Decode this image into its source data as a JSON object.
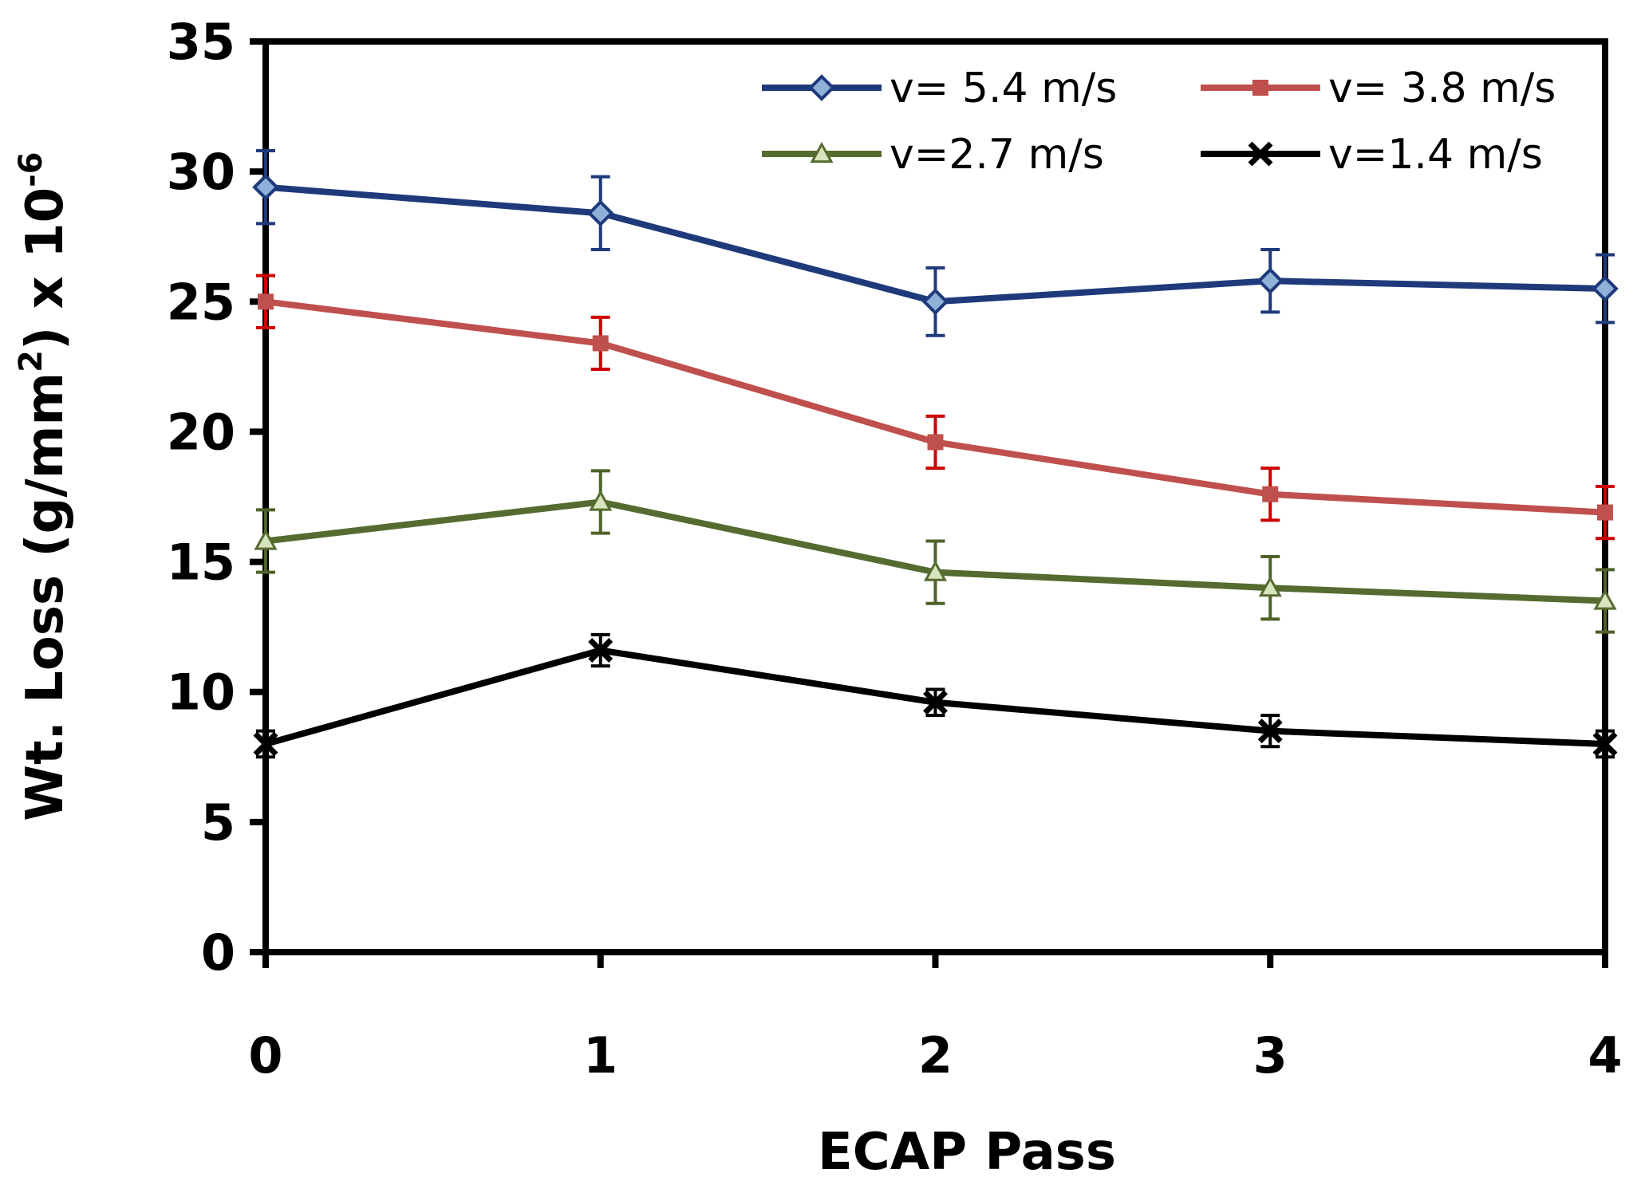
{
  "chart_data": {
    "type": "line",
    "title": "",
    "xlabel": "ECAP Pass",
    "ylabel": {
      "text": "Wt. Loss (g/mm",
      "sup1": "2",
      "mid": ") x 10",
      "sup2": "-6"
    },
    "x": [
      0,
      1,
      2,
      3,
      4
    ],
    "xlim": [
      0,
      4
    ],
    "ylim": [
      0,
      35
    ],
    "y_ticks": [
      0,
      5,
      10,
      15,
      20,
      25,
      30,
      35
    ],
    "x_tick_labels": [
      "0",
      "1",
      "2",
      "3",
      "4"
    ],
    "y_tick_labels": [
      "0",
      "5",
      "10",
      "15",
      "20",
      "25",
      "30",
      "35"
    ],
    "grid": false,
    "legend_position": "top-right",
    "series": [
      {
        "name": "v= 5.4 m/s",
        "color": "#1f3a7a",
        "marker_fill": "#8fb0d8",
        "marker": "diamond",
        "error_color": "#1f3a7a",
        "values": [
          29.4,
          28.4,
          25.0,
          25.8,
          25.5
        ],
        "errors": [
          1.4,
          1.4,
          1.3,
          1.2,
          1.3
        ]
      },
      {
        "name": "v= 3.8 m/s",
        "color": "#c0504d",
        "marker_fill": "#c0504d",
        "marker": "square",
        "error_color": "#cc0000",
        "values": [
          25.0,
          23.4,
          19.6,
          17.6,
          16.9
        ],
        "errors": [
          1.0,
          1.0,
          1.0,
          1.0,
          1.0
        ]
      },
      {
        "name": "v=2.7 m/s",
        "color": "#556b2f",
        "marker_fill": "#d7e4bd",
        "marker": "triangle",
        "error_color": "#4f6228",
        "values": [
          15.8,
          17.3,
          14.6,
          14.0,
          13.5
        ],
        "errors": [
          1.2,
          1.2,
          1.2,
          1.2,
          1.2
        ]
      },
      {
        "name": "v=1.4 m/s",
        "color": "#000000",
        "marker_fill": "#000000",
        "marker": "x",
        "error_color": "#000000",
        "values": [
          8.0,
          11.6,
          9.6,
          8.5,
          8.0
        ],
        "errors": [
          0.5,
          0.6,
          0.5,
          0.6,
          0.5
        ]
      }
    ]
  }
}
